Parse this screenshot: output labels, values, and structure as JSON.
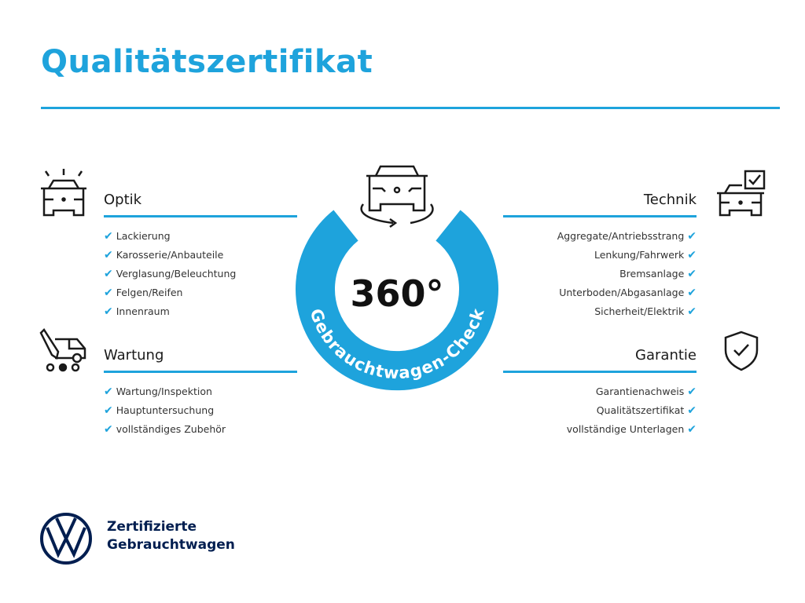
{
  "title": "Qualitätszertifikat",
  "colors": {
    "accent": "#1ea3dc",
    "brand_dark": "#001e50"
  },
  "center": {
    "big": "360°",
    "arc_text": "Gebrauchtwagen-Check",
    "icon": "car-rotate-icon"
  },
  "sections": {
    "optik": {
      "title": "Optik",
      "icon": "car-lights-icon",
      "items": [
        "Lackierung",
        "Karosserie/Anbauteile",
        "Verglasung/Beleuchtung",
        "Felgen/Reifen",
        "Innenraum"
      ]
    },
    "wartung": {
      "title": "Wartung",
      "icon": "maintenance-icon",
      "items": [
        "Wartung/Inspektion",
        "Hauptuntersuchung",
        "vollständiges Zubehör"
      ]
    },
    "technik": {
      "title": "Technik",
      "icon": "car-checkbox-icon",
      "items": [
        "Aggregate/Antriebsstrang",
        "Lenkung/Fahrwerk",
        "Bremsanlage",
        "Unterboden/Abgasanlage",
        "Sicherheit/Elektrik"
      ]
    },
    "garantie": {
      "title": "Garantie",
      "icon": "shield-check-icon",
      "items": [
        "Garantienachweis",
        "Qualitätszertifikat",
        "vollständige Unterlagen"
      ]
    }
  },
  "check_glyph": "✔",
  "footer": {
    "line1": "Zertifizierte",
    "line2": "Gebrauchtwagen",
    "logo": "VW"
  }
}
